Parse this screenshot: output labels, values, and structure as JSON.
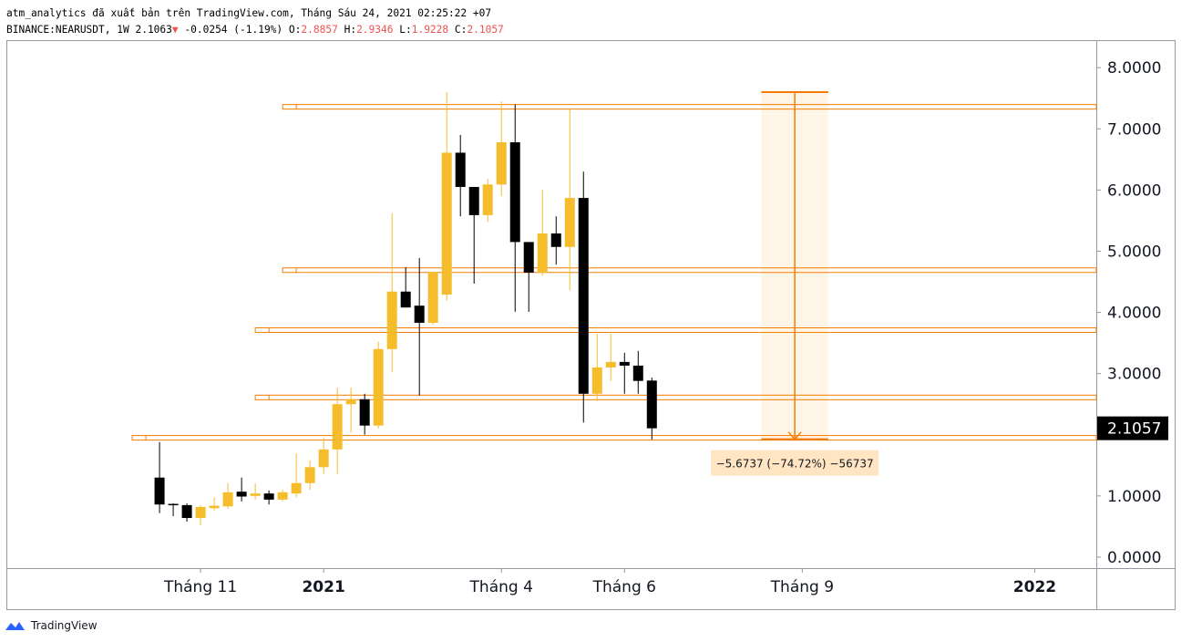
{
  "chart_data": {
    "type": "candlestick",
    "header": "atm_analytics đã xuất bản trên TradingView.com, Tháng Sáu 24, 2021 02:25:22 +07",
    "legend": {
      "symbol": "BINANCE:NEARUSDT, 1W",
      "price": "2.1063",
      "arrow": "▼",
      "change": "-0.0254 (-1.19%)",
      "fields": [
        {
          "key": "O:",
          "value": "2.8857"
        },
        {
          "key": "H:",
          "value": "2.9346"
        },
        {
          "key": "L:",
          "value": "1.9228"
        },
        {
          "key": "C:",
          "value": "2.1057"
        }
      ]
    },
    "open": [
      1.3,
      0.87,
      0.85,
      0.64,
      0.8,
      0.83,
      1.07,
      1.0,
      1.04,
      0.94,
      1.04,
      1.21,
      1.47,
      1.76,
      2.5,
      2.58,
      2.15,
      3.4,
      4.34,
      4.11,
      3.83,
      4.29,
      6.61,
      6.05,
      5.59,
      6.09,
      6.78,
      5.15,
      4.65,
      5.29,
      5.07,
      5.87,
      2.67,
      3.1,
      3.19,
      3.13,
      2.8857
    ],
    "high": [
      1.88,
      0.88,
      0.88,
      0.85,
      0.98,
      1.21,
      1.3,
      1.21,
      1.09,
      1.1,
      1.7,
      1.58,
      1.95,
      2.77,
      2.77,
      2.67,
      3.52,
      5.62,
      4.74,
      4.89,
      4.66,
      7.6,
      6.9,
      6.05,
      6.18,
      7.45,
      7.4,
      5.15,
      6.0,
      5.57,
      7.34,
      6.3,
      3.65,
      3.65,
      3.34,
      3.37,
      2.9346
    ],
    "low": [
      0.72,
      0.67,
      0.58,
      0.52,
      0.76,
      0.79,
      0.91,
      0.94,
      0.86,
      0.91,
      0.98,
      1.1,
      1.36,
      1.36,
      2.03,
      2.0,
      2.1,
      3.02,
      4.08,
      2.64,
      3.8,
      4.19,
      5.57,
      4.47,
      5.48,
      5.9,
      4.01,
      4.01,
      4.6,
      4.78,
      4.36,
      2.2,
      2.55,
      2.88,
      2.67,
      2.67,
      1.9228
    ],
    "close": [
      0.86,
      0.85,
      0.64,
      0.82,
      0.84,
      1.06,
      0.99,
      1.04,
      0.94,
      1.06,
      1.21,
      1.47,
      1.76,
      2.5,
      2.58,
      2.15,
      3.4,
      4.34,
      4.08,
      3.83,
      4.66,
      6.61,
      6.05,
      5.59,
      6.09,
      6.78,
      5.15,
      4.65,
      5.29,
      5.07,
      5.87,
      2.67,
      3.1,
      3.19,
      3.13,
      2.88,
      2.1057
    ],
    "up_color": "#f5bd2c",
    "down_color": "#000000",
    "xlim": [
      -11.2,
      68.5
    ],
    "xticks": [
      {
        "value": 3,
        "label": "Tháng 11"
      },
      {
        "value": 12,
        "label": "2021"
      },
      {
        "value": 25,
        "label": "Tháng 4"
      },
      {
        "value": 34,
        "label": "Tháng 6"
      },
      {
        "value": 47,
        "label": "Tháng 9"
      },
      {
        "value": 64,
        "label": "2022"
      }
    ],
    "ylim": [
      -0.18,
      8.45
    ],
    "yticks": [
      {
        "value": 0,
        "label": "0.0000"
      },
      {
        "value": 1,
        "label": "1.0000"
      },
      {
        "value": 2,
        "label": "2.0000"
      },
      {
        "value": 3,
        "label": "3.0000"
      },
      {
        "value": 4,
        "label": "4.0000"
      },
      {
        "value": 5,
        "label": "5.0000"
      },
      {
        "value": 6,
        "label": "6.0000"
      },
      {
        "value": 7,
        "label": "7.0000"
      },
      {
        "value": 8,
        "label": "8.0000"
      }
    ],
    "last_price": 2.1057,
    "level_color": "#f57c00",
    "levels": [
      {
        "value": 7.36,
        "start": 9
      },
      {
        "value": 4.69,
        "start": 9
      },
      {
        "value": 3.71,
        "start": 7
      },
      {
        "value": 2.61,
        "start": 7
      },
      {
        "value": 1.95,
        "start": -2
      }
    ],
    "measure": {
      "from": 7.6,
      "to": 1.9263,
      "x0": 44,
      "x1": 48.9,
      "label": "−5.6737 (−74.72%) −56737"
    },
    "footer": "TradingView"
  }
}
